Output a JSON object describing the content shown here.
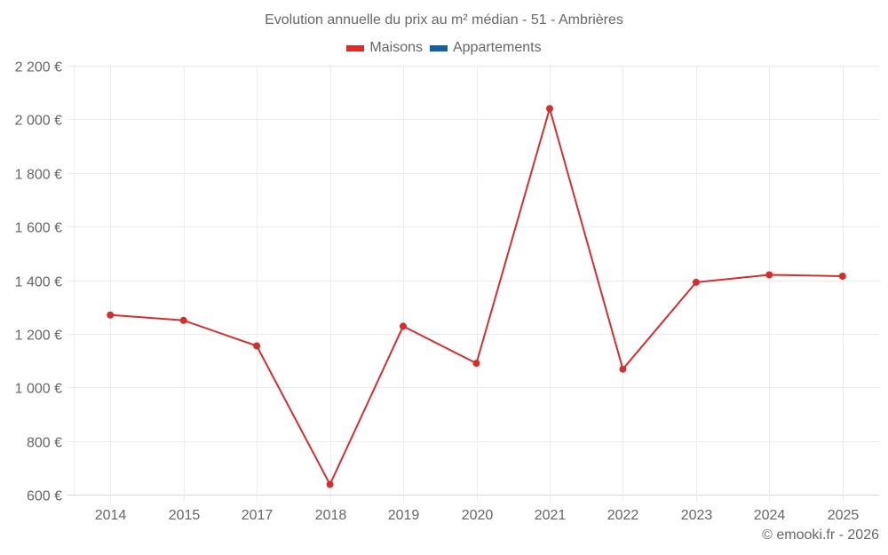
{
  "title": "Evolution annuelle du prix au m² médian - 51 - Ambrières",
  "legend": [
    {
      "label": "Maisons",
      "color": "#dd2b2b"
    },
    {
      "label": "Appartements",
      "color": "#15619e"
    }
  ],
  "credit": "© emooki.fr - 2026",
  "chart_data": {
    "type": "line",
    "title": "Evolution annuelle du prix au m² médian - 51 - Ambrières",
    "xlabel": "",
    "ylabel": "",
    "categories": [
      "2014",
      "2015",
      "2017",
      "2018",
      "2019",
      "2020",
      "2021",
      "2022",
      "2023",
      "2024",
      "2025"
    ],
    "series": [
      {
        "name": "Maisons",
        "color": "#d32f2f",
        "values": [
          1270,
          1250,
          1155,
          638,
          1228,
          1090,
          2040,
          1068,
          1392,
          1420,
          1415
        ]
      },
      {
        "name": "Appartements",
        "color": "#15619e",
        "values": []
      }
    ],
    "ylim": [
      600,
      2200
    ],
    "yticks": [
      600,
      800,
      1000,
      1200,
      1400,
      1600,
      1800,
      2000,
      2200
    ],
    "ytick_labels": [
      "600 €",
      "800 €",
      "1 000 €",
      "1 200 €",
      "1 400 €",
      "1 600 €",
      "1 800 €",
      "2 000 €",
      "2 200 €"
    ],
    "grid": true,
    "legend_position": "top"
  }
}
